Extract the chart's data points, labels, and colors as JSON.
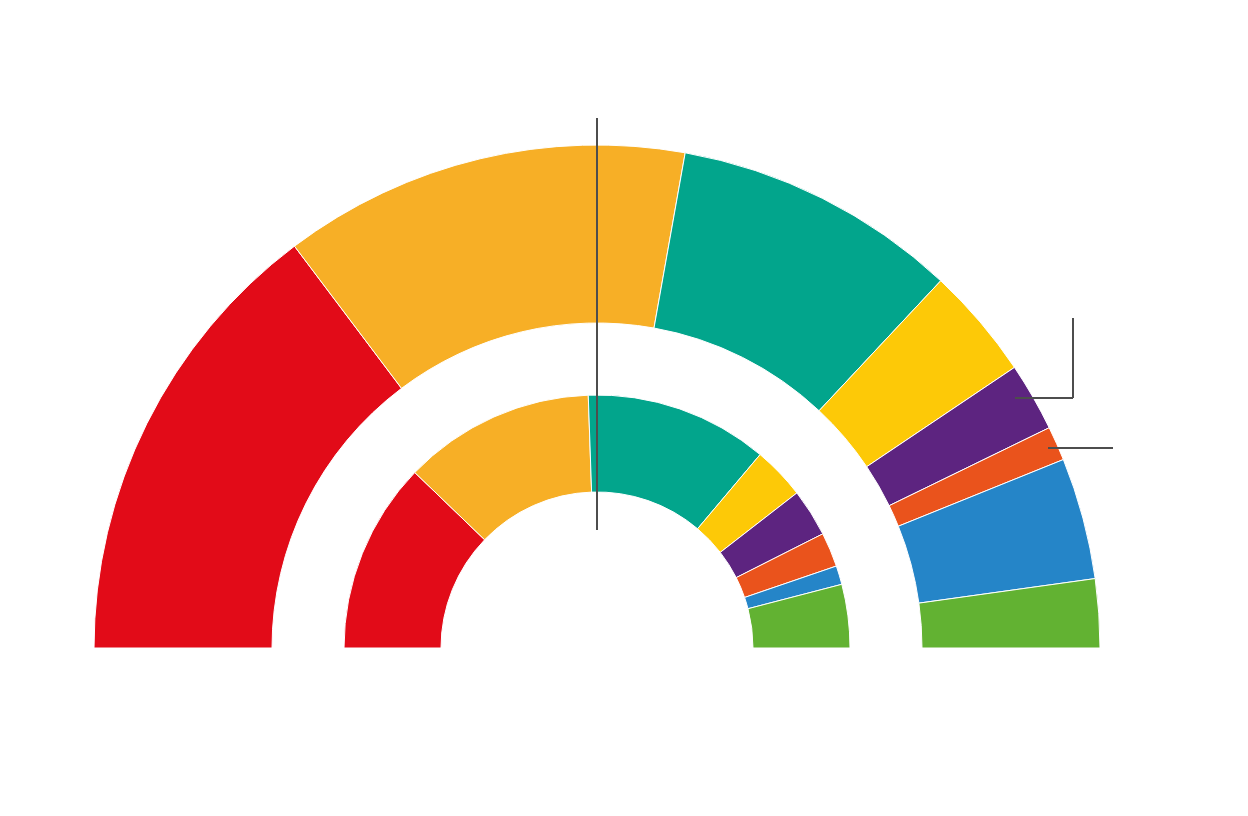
{
  "chart_data": {
    "type": "donut",
    "colors": [
      "#e20b18",
      "#f7af26",
      "#02a58c",
      "#fdc907",
      "#5d2480",
      "#ea531c",
      "#2585c8",
      "#62b232"
    ],
    "series": [
      {
        "values": [
          29.4,
          26.1,
          18.3,
          7.2,
          4.4,
          2.2,
          7.8,
          4.4
        ]
      },
      {
        "values": [
          24.4,
          24.5,
          23.4,
          6.7,
          6.1,
          4.4,
          2.4,
          8.1
        ]
      }
    ]
  }
}
